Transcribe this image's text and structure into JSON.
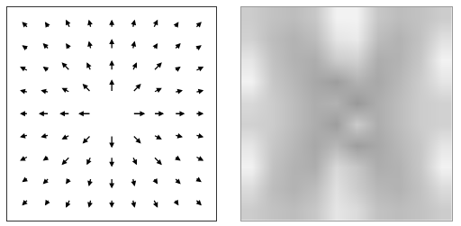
{
  "chart_data": [
    {
      "type": "quiver",
      "color": "#000000",
      "grid": false,
      "tick_labels": false,
      "xlim": [
        0,
        1
      ],
      "ylim": [
        0,
        1
      ],
      "x": [
        0.1,
        0.2,
        0.3,
        0.4,
        0.5,
        0.6,
        0.7,
        0.8,
        0.9,
        0.1,
        0.2,
        0.3,
        0.4,
        0.5,
        0.6,
        0.7,
        0.8,
        0.9,
        0.1,
        0.2,
        0.3,
        0.4,
        0.5,
        0.6,
        0.7,
        0.8,
        0.9,
        0.1,
        0.2,
        0.3,
        0.4,
        0.5,
        0.6,
        0.7,
        0.8,
        0.9,
        0.1,
        0.2,
        0.3,
        0.4,
        0.6,
        0.7,
        0.8,
        0.9,
        0.1,
        0.2,
        0.3,
        0.4,
        0.5,
        0.6,
        0.7,
        0.8,
        0.9,
        0.1,
        0.2,
        0.3,
        0.4,
        0.5,
        0.6,
        0.7,
        0.8,
        0.9,
        0.1,
        0.2,
        0.3,
        0.4,
        0.5,
        0.6,
        0.7,
        0.8,
        0.9,
        0.1,
        0.2,
        0.3,
        0.4,
        0.5,
        0.6,
        0.7,
        0.8,
        0.9
      ],
      "y": [
        0.9,
        0.9,
        0.9,
        0.9,
        0.9,
        0.9,
        0.9,
        0.9,
        0.9,
        0.8,
        0.8,
        0.8,
        0.8,
        0.8,
        0.8,
        0.8,
        0.8,
        0.8,
        0.7,
        0.7,
        0.7,
        0.7,
        0.7,
        0.7,
        0.7,
        0.7,
        0.7,
        0.6,
        0.6,
        0.6,
        0.6,
        0.6,
        0.6,
        0.6,
        0.6,
        0.6,
        0.5,
        0.5,
        0.5,
        0.5,
        0.5,
        0.5,
        0.5,
        0.5,
        0.4,
        0.4,
        0.4,
        0.4,
        0.4,
        0.4,
        0.4,
        0.4,
        0.4,
        0.3,
        0.3,
        0.3,
        0.3,
        0.3,
        0.3,
        0.3,
        0.3,
        0.3,
        0.2,
        0.2,
        0.2,
        0.2,
        0.2,
        0.2,
        0.2,
        0.2,
        0.2,
        0.1,
        0.1,
        0.1,
        0.1,
        0.1,
        0.1,
        0.1,
        0.1,
        0.1
      ],
      "u": [
        -0.03,
        -0.02,
        -0.02,
        -0.01,
        0,
        0.01,
        0.02,
        0.02,
        0.03,
        -0.03,
        -0.03,
        -0.02,
        -0.01,
        0,
        0.01,
        0.02,
        0.03,
        0.03,
        -0.04,
        -0.03,
        -0.04,
        -0.02,
        0,
        0.02,
        0.04,
        0.03,
        0.04,
        -0.04,
        -0.04,
        -0.04,
        -0.04,
        0,
        0.04,
        0.04,
        0.04,
        0.04,
        -0.04,
        -0.05,
        -0.05,
        -0.06,
        0.06,
        0.05,
        0.05,
        0.04,
        -0.04,
        -0.04,
        -0.04,
        -0.04,
        0,
        0.04,
        0.04,
        0.04,
        0.04,
        -0.04,
        -0.03,
        -0.04,
        -0.02,
        0,
        0.02,
        0.04,
        0.03,
        0.04,
        -0.03,
        -0.03,
        -0.02,
        -0.01,
        0,
        0.01,
        0.02,
        0.03,
        0.03,
        -0.03,
        -0.02,
        -0.02,
        -0.01,
        0,
        0.01,
        0.02,
        0.02,
        0.03
      ],
      "v": [
        0.03,
        0.03,
        0.04,
        0.04,
        0.04,
        0.04,
        0.04,
        0.03,
        0.03,
        0.02,
        0.03,
        0.03,
        0.04,
        0.05,
        0.04,
        0.03,
        0.03,
        0.02,
        0.02,
        0.02,
        0.04,
        0.04,
        0.05,
        0.04,
        0.04,
        0.02,
        0.02,
        0.01,
        0.01,
        0.02,
        0.04,
        0.06,
        0.04,
        0.02,
        0.01,
        0.01,
        0,
        0,
        0,
        0,
        0,
        0,
        0,
        0,
        -0.01,
        -0.01,
        -0.02,
        -0.04,
        -0.06,
        -0.04,
        -0.02,
        -0.01,
        -0.01,
        -0.02,
        -0.02,
        -0.04,
        -0.04,
        -0.05,
        -0.04,
        -0.04,
        -0.02,
        -0.02,
        -0.02,
        -0.03,
        -0.03,
        -0.04,
        -0.05,
        -0.04,
        -0.03,
        -0.03,
        -0.02,
        -0.03,
        -0.03,
        -0.04,
        -0.04,
        -0.04,
        -0.04,
        -0.04,
        -0.03,
        -0.03
      ]
    },
    {
      "type": "heatmap",
      "grid": false,
      "tick_labels": false,
      "xlim": [
        -0.5,
        9.5
      ],
      "ylim": [
        9.5,
        -0.5
      ],
      "zlim": [
        0,
        1
      ],
      "cells": [
        [
          0.8,
          0.76,
          0.74,
          0.78,
          0.95,
          0.95,
          0.78,
          0.74,
          0.76,
          0.8
        ],
        [
          0.82,
          0.74,
          0.7,
          0.74,
          0.9,
          0.92,
          0.74,
          0.7,
          0.76,
          0.88
        ],
        [
          0.9,
          0.76,
          0.7,
          0.68,
          0.8,
          0.82,
          0.68,
          0.7,
          0.78,
          0.95
        ],
        [
          0.95,
          0.78,
          0.72,
          0.66,
          0.62,
          0.7,
          0.66,
          0.72,
          0.8,
          0.9
        ],
        [
          0.85,
          0.8,
          0.74,
          0.68,
          0.7,
          0.6,
          0.68,
          0.74,
          0.8,
          0.82
        ],
        [
          0.82,
          0.8,
          0.74,
          0.68,
          0.62,
          0.8,
          0.68,
          0.74,
          0.8,
          0.82
        ],
        [
          0.9,
          0.78,
          0.72,
          0.66,
          0.72,
          0.62,
          0.66,
          0.72,
          0.78,
          0.9
        ],
        [
          0.95,
          0.76,
          0.7,
          0.68,
          0.85,
          0.78,
          0.68,
          0.7,
          0.78,
          0.95
        ],
        [
          0.86,
          0.74,
          0.7,
          0.74,
          0.88,
          0.8,
          0.72,
          0.7,
          0.76,
          0.86
        ],
        [
          0.8,
          0.76,
          0.74,
          0.78,
          0.9,
          0.86,
          0.76,
          0.74,
          0.76,
          0.8
        ]
      ]
    }
  ]
}
